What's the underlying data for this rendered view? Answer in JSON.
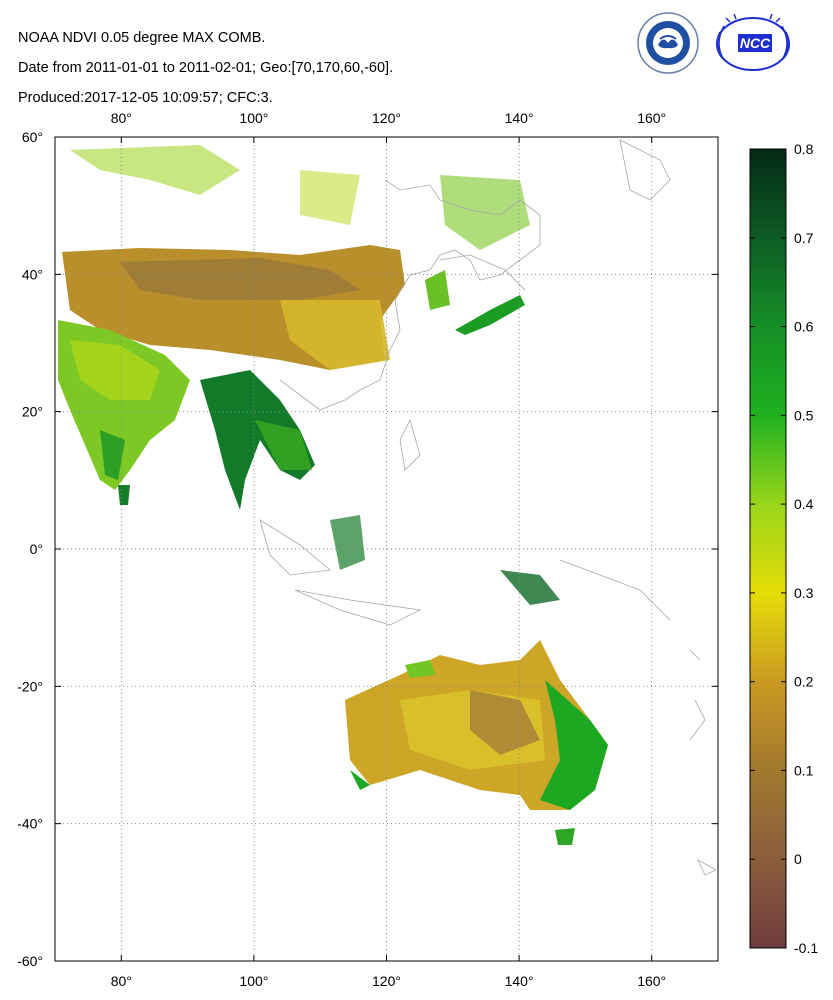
{
  "header": {
    "line1": "NOAA NDVI 0.05 degree MAX COMB.",
    "line2": "Date from 2011-01-01 to 2011-02-01; Geo:[70,170,60,-60].",
    "line3": "Produced:2017-12-05 10:09:57; CFC:3."
  },
  "logos": {
    "cma": "CHINA METEOROLOGICAL ADMINISTRATION",
    "ncc": "NCC"
  },
  "map": {
    "lon_range": [
      70,
      170
    ],
    "lat_range": [
      -60,
      60
    ],
    "x_ticks": [
      80,
      100,
      120,
      140,
      160
    ],
    "y_ticks": [
      60,
      40,
      20,
      0,
      -20,
      -40,
      -60
    ],
    "x_tick_labels": [
      "80°",
      "100°",
      "120°",
      "140°",
      "160°"
    ],
    "y_tick_labels": [
      "60°",
      "40°",
      "20°",
      "0°",
      "-20°",
      "-40°",
      "-60°"
    ],
    "grid": true,
    "regions": [
      {
        "name": "India",
        "ndvi": 0.42
      },
      {
        "name": "Indochina",
        "ndvi": 0.6
      },
      {
        "name": "China",
        "ndvi": 0.2
      },
      {
        "name": "Australia interior",
        "ndvi": 0.22
      },
      {
        "name": "Australia east coast",
        "ndvi": 0.55
      }
    ]
  },
  "colorbar": {
    "min": -0.1,
    "max": 0.8,
    "tick_values": [
      0.8,
      0.7,
      0.6,
      0.5,
      0.4,
      0.3,
      0.2,
      0.1,
      0,
      -0.1
    ],
    "tick_labels": [
      "0.8",
      "0.7",
      "0.6",
      "0.5",
      "0.4",
      "0.3",
      "0.2",
      "0.1",
      "0",
      "-0.1"
    ],
    "stops": [
      {
        "v": -0.1,
        "color": "#6e3c3c"
      },
      {
        "v": 0.0,
        "color": "#8a5d3c"
      },
      {
        "v": 0.1,
        "color": "#a2782f"
      },
      {
        "v": 0.2,
        "color": "#c99a22"
      },
      {
        "v": 0.3,
        "color": "#e6dd08"
      },
      {
        "v": 0.4,
        "color": "#98d51a"
      },
      {
        "v": 0.5,
        "color": "#1fb01f"
      },
      {
        "v": 0.6,
        "color": "#158e26"
      },
      {
        "v": 0.7,
        "color": "#0e5c25"
      },
      {
        "v": 0.8,
        "color": "#032a16"
      }
    ]
  }
}
